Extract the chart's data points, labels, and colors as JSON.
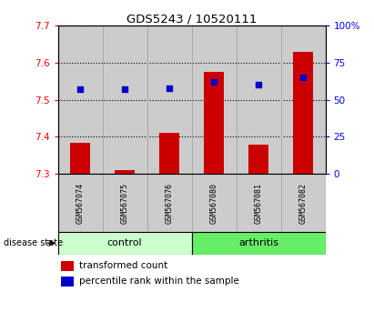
{
  "title": "GDS5243 / 10520111",
  "samples": [
    "GSM567074",
    "GSM567075",
    "GSM567076",
    "GSM567080",
    "GSM567081",
    "GSM567082"
  ],
  "bar_values": [
    7.385,
    7.31,
    7.41,
    7.575,
    7.38,
    7.63
  ],
  "bar_bottom": 7.3,
  "percentile_values": [
    57,
    57,
    58,
    62,
    60,
    65
  ],
  "ylim_left": [
    7.3,
    7.7
  ],
  "ylim_right": [
    0,
    100
  ],
  "yticks_left": [
    7.3,
    7.4,
    7.5,
    7.6,
    7.7
  ],
  "yticks_right": [
    0,
    25,
    50,
    75,
    100
  ],
  "bar_color": "#cc0000",
  "dot_color": "#0000cc",
  "control_color": "#ccffcc",
  "arthritis_color": "#66ee66",
  "disease_label": "disease state",
  "legend_bar_label": "transformed count",
  "legend_dot_label": "percentile rank within the sample",
  "bg_color": "#cccccc",
  "plot_bg": "#ffffff",
  "fig_width": 4.11,
  "fig_height": 3.54,
  "dpi": 100
}
